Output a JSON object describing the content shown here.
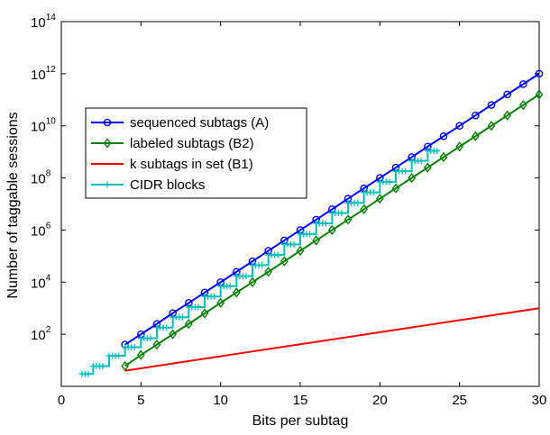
{
  "chart_data": {
    "type": "line",
    "xlabel": "Bits per subtag",
    "ylabel": "Number of taggable sessions",
    "xlim": [
      0,
      30
    ],
    "ylim": [
      1,
      100000000000000.0
    ],
    "yscale": "log",
    "grid": false,
    "legend_position": "center-left",
    "x_ticks": [
      0,
      5,
      10,
      15,
      20,
      25,
      30
    ],
    "y_ticks": [
      {
        "base": "10",
        "exp": "2",
        "value": 100
      },
      {
        "base": "10",
        "exp": "4",
        "value": 10000
      },
      {
        "base": "10",
        "exp": "6",
        "value": 1000000
      },
      {
        "base": "10",
        "exp": "8",
        "value": 100000000
      },
      {
        "base": "10",
        "exp": "10",
        "value": 10000000000
      },
      {
        "base": "10",
        "exp": "12",
        "value": 1000000000000
      },
      {
        "base": "10",
        "exp": "14",
        "value": 100000000000000
      }
    ],
    "series": [
      {
        "name": "sequenced subtags (A)",
        "color": "#0000ff",
        "marker": "circle",
        "x": [
          4,
          5,
          6,
          7,
          8,
          9,
          10,
          11,
          12,
          13,
          14,
          15,
          16,
          17,
          18,
          19,
          20,
          21,
          22,
          23,
          24,
          25,
          26,
          27,
          28,
          29,
          30
        ],
        "y": [
          40,
          100,
          250,
          650,
          1600,
          4000,
          10000,
          25000,
          63000,
          160000,
          400000,
          1000000,
          2500000,
          6300000,
          16000000,
          40000000,
          100000000,
          250000000,
          630000000,
          1600000000,
          4000000000,
          10000000000,
          25000000000,
          63000000000,
          160000000000,
          400000000000,
          1000000000000
        ]
      },
      {
        "name": "labeled subtags (B2)",
        "color": "#008000",
        "marker": "diamond",
        "x": [
          4,
          5,
          6,
          7,
          8,
          9,
          10,
          11,
          12,
          13,
          14,
          15,
          16,
          17,
          18,
          19,
          20,
          21,
          22,
          23,
          24,
          25,
          26,
          27,
          28,
          29,
          30
        ],
        "y": [
          6,
          16,
          40,
          100,
          250,
          630,
          1600,
          4000,
          10000,
          25000,
          63000,
          160000,
          400000,
          1000000,
          2500000,
          6300000,
          16000000,
          40000000,
          100000000,
          250000000,
          630000000,
          1600000000,
          4000000000,
          10000000000,
          25000000000,
          63000000000,
          160000000000
        ]
      },
      {
        "name": "k subtags in set (B1)",
        "color": "#ff0000",
        "marker": "none",
        "x": [
          4,
          30
        ],
        "y": [
          4,
          1000
        ]
      },
      {
        "name": "CIDR blocks",
        "color": "#00bfbf",
        "marker": "plus",
        "step": true,
        "x": [
          1.3,
          1.5,
          1.7,
          2,
          2.2,
          2.4,
          2.6,
          3,
          3.2,
          3.4,
          3.6,
          4,
          4.2,
          4.4,
          4.6,
          5,
          5.2,
          5.4,
          5.6,
          6,
          6.2,
          6.4,
          6.6,
          7,
          7.2,
          7.4,
          7.6,
          8,
          8.2,
          8.4,
          8.6,
          9,
          9.2,
          9.4,
          9.6,
          10,
          10.2,
          10.4,
          10.6,
          11,
          11.2,
          11.4,
          11.6,
          12,
          12.2,
          12.4,
          12.6,
          13,
          13.2,
          13.4,
          13.6,
          14,
          14.2,
          14.4,
          14.6,
          15,
          15.2,
          15.4,
          15.6,
          16,
          16.2,
          16.4,
          16.6,
          17,
          17.2,
          17.4,
          17.6,
          18,
          18.2,
          18.4,
          18.6,
          19,
          19.2,
          19.4,
          19.6,
          20,
          20.2,
          20.4,
          20.6,
          21,
          21.2,
          21.4,
          21.6,
          22,
          22.2,
          22.4,
          22.6,
          23,
          23.2,
          23.4,
          23.6
        ],
        "y": [
          3,
          3,
          3,
          6,
          6,
          6,
          6,
          15,
          15,
          15,
          15,
          32,
          32,
          32,
          32,
          70,
          70,
          70,
          70,
          180,
          180,
          180,
          180,
          450,
          450,
          450,
          450,
          1100,
          1100,
          1100,
          1100,
          2800,
          2800,
          2800,
          2800,
          7000,
          7000,
          7000,
          7000,
          17000,
          17000,
          17000,
          17000,
          45000,
          45000,
          45000,
          45000,
          110000,
          110000,
          110000,
          110000,
          280000,
          280000,
          280000,
          280000,
          700000,
          700000,
          700000,
          700000,
          1800000,
          1800000,
          1800000,
          1800000,
          4500000,
          4500000,
          4500000,
          4500000,
          11000000,
          11000000,
          11000000,
          11000000,
          28000000,
          28000000,
          28000000,
          28000000,
          70000000,
          70000000,
          70000000,
          70000000,
          180000000,
          180000000,
          180000000,
          180000000,
          450000000,
          450000000,
          450000000,
          450000000,
          1100000000,
          1100000000,
          1100000000,
          1100000000
        ]
      }
    ]
  }
}
